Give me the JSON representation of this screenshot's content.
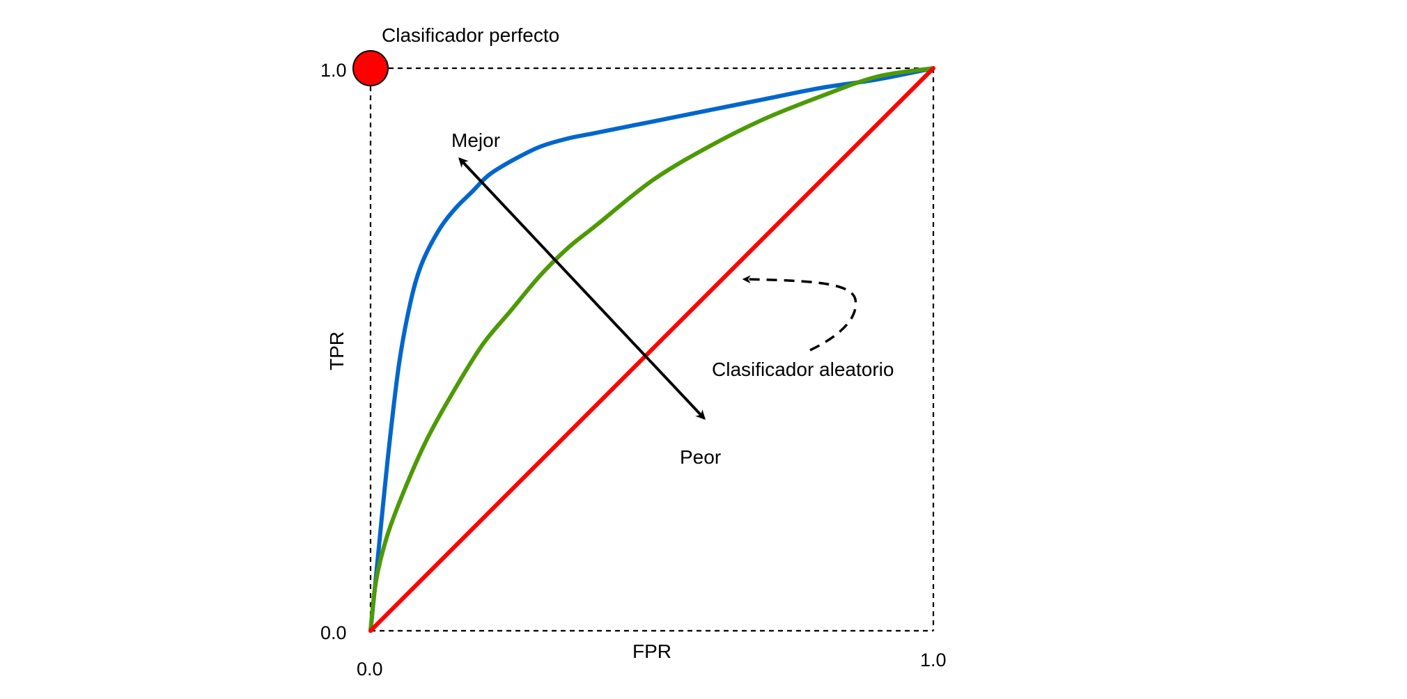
{
  "chart_data": {
    "type": "line",
    "title": "",
    "xlabel": "FPR",
    "ylabel": "TPR",
    "xlim": [
      0,
      1
    ],
    "ylim": [
      0,
      1
    ],
    "x_ticks": [
      {
        "value": 0,
        "label": "0.0"
      },
      {
        "value": 1,
        "label": "1.0"
      }
    ],
    "y_ticks": [
      {
        "value": 0,
        "label": "0.0"
      },
      {
        "value": 1,
        "label": "1.0"
      }
    ],
    "grid": false,
    "frame_style": "dashed",
    "series": [
      {
        "color": "#0066cc",
        "x": [
          0,
          0.01,
          0.03,
          0.05,
          0.07,
          0.09,
          0.12,
          0.15,
          0.18,
          0.21,
          0.25,
          0.3,
          0.35,
          0.4,
          0.5,
          0.6,
          0.7,
          0.8,
          0.9,
          1.0
        ],
        "y": [
          0,
          0.1,
          0.3,
          0.47,
          0.58,
          0.65,
          0.71,
          0.75,
          0.78,
          0.81,
          0.835,
          0.86,
          0.875,
          0.885,
          0.905,
          0.925,
          0.945,
          0.965,
          0.98,
          1.0
        ]
      },
      {
        "color": "#4d9a06",
        "x": [
          0,
          0.01,
          0.03,
          0.06,
          0.1,
          0.15,
          0.2,
          0.25,
          0.3,
          0.35,
          0.4,
          0.5,
          0.6,
          0.7,
          0.8,
          0.9,
          1.0
        ],
        "y": [
          0,
          0.09,
          0.17,
          0.25,
          0.34,
          0.43,
          0.51,
          0.57,
          0.63,
          0.68,
          0.72,
          0.8,
          0.86,
          0.91,
          0.95,
          0.985,
          1.0
        ]
      },
      {
        "color": "#ff0000",
        "x": [
          0,
          1
        ],
        "y": [
          0,
          1
        ]
      }
    ],
    "points": [
      {
        "x": 0,
        "y": 1,
        "color": "#ff0000"
      }
    ],
    "annotations": {
      "perfect": "Clasificador perfecto",
      "better": "Mejor",
      "worse": "Peor",
      "random": "Clasificador aleatorio"
    }
  }
}
